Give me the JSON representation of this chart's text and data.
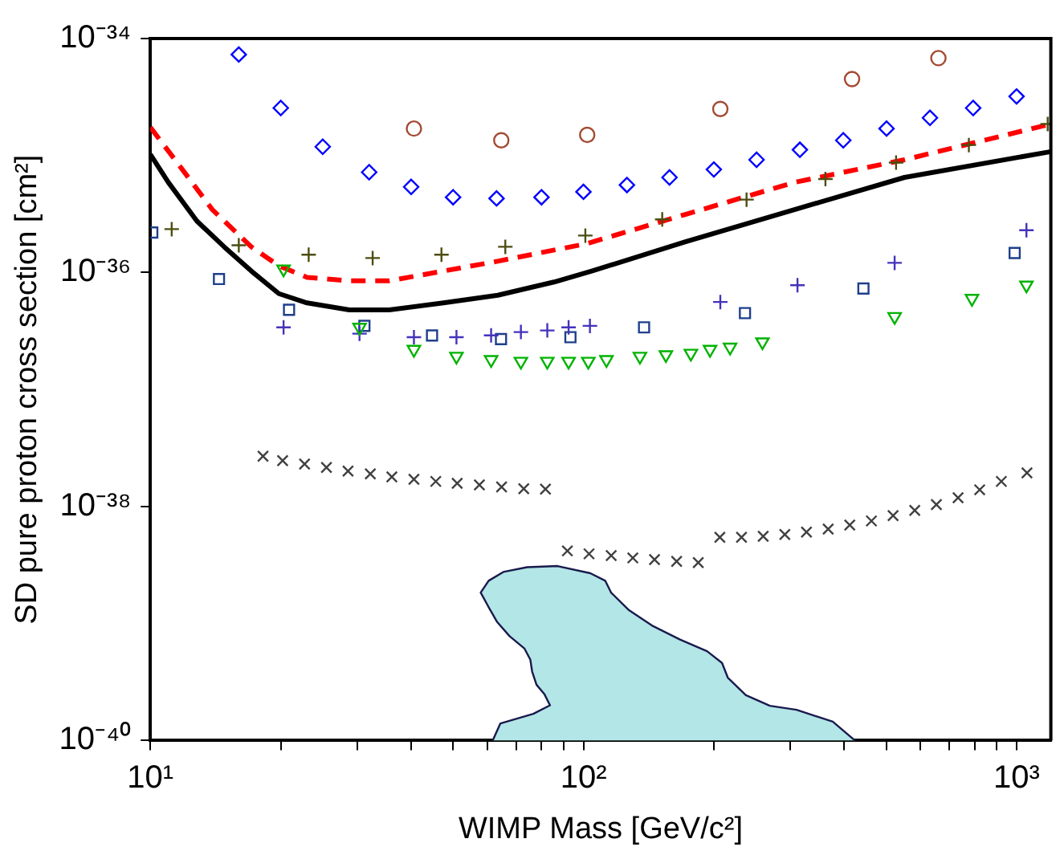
{
  "chart_data": {
    "type": "scatter",
    "xlabel": "WIMP Mass [GeV/c²]",
    "ylabel": "SD pure proton cross section [cm²]",
    "log": "xy",
    "grid": false,
    "legend": false,
    "xlim": [
      10,
      1200
    ],
    "ylim": [
      1e-40,
      1e-34
    ],
    "xticks": [
      {
        "value": 10,
        "label": "10¹"
      },
      {
        "value": 20,
        "label": null
      },
      {
        "value": 30,
        "label": null
      },
      {
        "value": 40,
        "label": null
      },
      {
        "value": 50,
        "label": null
      },
      {
        "value": 60,
        "label": null
      },
      {
        "value": 70,
        "label": null
      },
      {
        "value": 80,
        "label": null
      },
      {
        "value": 90,
        "label": null
      },
      {
        "value": 100,
        "label": "10²"
      },
      {
        "value": 200,
        "label": null
      },
      {
        "value": 300,
        "label": null
      },
      {
        "value": 400,
        "label": null
      },
      {
        "value": 500,
        "label": null
      },
      {
        "value": 600,
        "label": null
      },
      {
        "value": 700,
        "label": null
      },
      {
        "value": 800,
        "label": null
      },
      {
        "value": 900,
        "label": null
      },
      {
        "value": 1000,
        "label": "10³"
      }
    ],
    "yticks": [
      {
        "value": 1e-40,
        "label": "10⁻⁴⁰"
      },
      {
        "value": 1e-38,
        "label": "10⁻³⁸"
      },
      {
        "value": 1e-36,
        "label": "10⁻³⁶"
      },
      {
        "value": 1e-34,
        "label": "10⁻³⁴"
      }
    ],
    "series": [
      {
        "type": "area",
        "color": "#b3e6e6",
        "x": [
          61.7,
          64.3,
          76.6,
          83.7,
          81.2,
          77.9,
          76.1,
          75.4,
          73.1,
          67.5,
          63.2,
          60.4,
          57.9,
          60.4,
          65.3,
          74.1,
          87.1,
          103.7,
          112.3,
          115.8,
          127.4,
          144.8,
          167.1,
          192.9,
          208.9,
          215.4,
          237.1,
          269.4,
          310.5,
          376.4,
          423.6
        ],
        "values": [
          1e-40,
          1.4e-40,
          1.69e-40,
          2e-40,
          2.5e-40,
          3e-40,
          3.9e-40,
          4.9e-40,
          6.1e-40,
          7.8e-40,
          1.03e-39,
          1.38e-39,
          1.84e-39,
          2.32e-39,
          2.76e-39,
          3.03e-39,
          3.1e-39,
          2.69e-39,
          2.32e-39,
          1.84e-39,
          1.3e-39,
          9.5e-40,
          7.3e-40,
          5.8e-40,
          4.6e-40,
          3.45e-40,
          2.44e-40,
          1.98e-40,
          1.83e-40,
          1.45e-40,
          1e-40
        ]
      },
      {
        "type": "scatter",
        "marker": "circle",
        "color": "#a34a32",
        "x": [
          40.6,
          64.6,
          102,
          207,
          417,
          660
        ],
        "values": [
          1.7e-35,
          1.35e-35,
          1.5e-35,
          2.5e-35,
          4.5e-35,
          6.8e-35
        ]
      },
      {
        "type": "scatter",
        "marker": "diamond",
        "color": "#0000ff",
        "x": [
          16,
          20,
          25,
          32,
          40,
          50,
          63,
          80,
          100,
          126,
          158,
          200,
          251,
          316,
          398,
          501,
          631,
          794,
          1000
        ],
        "values": [
          7.3e-35,
          2.55e-35,
          1.19e-35,
          7.2e-36,
          5.4e-36,
          4.4e-36,
          4.3e-36,
          4.4e-36,
          4.9e-36,
          5.6e-36,
          6.5e-36,
          7.6e-36,
          9.2e-36,
          1.12e-35,
          1.35e-35,
          1.7e-35,
          2.1e-35,
          2.55e-35,
          3.2e-35
        ]
      },
      {
        "type": "scatter",
        "marker": "cross",
        "color": "#4d4d10",
        "x": [
          11.2,
          16,
          23.2,
          32.6,
          47,
          66,
          101,
          152,
          238,
          362,
          527,
          776,
          1180
        ],
        "values": [
          2.35e-36,
          1.71e-36,
          1.42e-36,
          1.33e-36,
          1.42e-36,
          1.66e-36,
          2.07e-36,
          2.85e-36,
          4.2e-36,
          6.3e-36,
          8.7e-36,
          1.23e-35,
          1.86e-35
        ]
      },
      {
        "type": "scatter",
        "marker": "square",
        "color": "#1f3f8c",
        "x": [
          10.1,
          14.4,
          20.9,
          31.2,
          44.7,
          64.5,
          93.3,
          138,
          236,
          443,
          990
        ],
        "values": [
          2.2e-36,
          8.8e-37,
          4.8e-37,
          3.5e-37,
          2.9e-37,
          2.7e-37,
          2.8e-37,
          3.4e-37,
          4.5e-37,
          7.3e-37,
          1.47e-36
        ]
      },
      {
        "type": "scatter",
        "marker": "cross",
        "color": "#4433bb",
        "x": [
          20.3,
          30.4,
          40.6,
          50.9,
          61.2,
          71.7,
          82.5,
          92.4,
          103.5,
          207,
          312,
          523,
          1054
        ],
        "values": [
          3.4e-37,
          3e-37,
          2.8e-37,
          2.8e-37,
          2.9e-37,
          3.1e-37,
          3.2e-37,
          3.4e-37,
          3.5e-37,
          5.6e-37,
          7.8e-37,
          1.21e-36,
          2.3e-36
        ]
      },
      {
        "type": "scatter",
        "marker": "triangle-down",
        "color": "#00b300",
        "x": [
          20.3,
          30.4,
          40.6,
          50.9,
          61.2,
          71.7,
          82.5,
          92.4,
          102.6,
          113,
          135,
          155,
          177,
          196,
          218,
          259,
          523,
          789,
          1054
        ],
        "values": [
          1.07e-36,
          3.4e-37,
          2.2e-37,
          1.92e-37,
          1.8e-37,
          1.74e-37,
          1.74e-37,
          1.74e-37,
          1.74e-37,
          1.8e-37,
          1.92e-37,
          1.98e-37,
          2.04e-37,
          2.2e-37,
          2.3e-37,
          2.55e-37,
          4.2e-37,
          6e-37,
          7.8e-37
        ]
      },
      {
        "type": "scatter",
        "marker": "x",
        "color": "#404040",
        "x": [
          18.2,
          20.2,
          22.7,
          25.5,
          28.6,
          32.2,
          36.1,
          40.6,
          45.6,
          51.1,
          57.5,
          64.7,
          72.8,
          81.7,
          91.8,
          103,
          115.9,
          130,
          145.9,
          164.1,
          184.1,
          206.5,
          231.7,
          260,
          291.7,
          327.3,
          367.3,
          412,
          462.3,
          518.7,
          582,
          653,
          732.8,
          822,
          922.3,
          1057
        ],
        "values": [
          2.69e-38,
          2.47e-38,
          2.31e-38,
          2.16e-38,
          2.01e-38,
          1.9e-38,
          1.79e-38,
          1.71e-38,
          1.64e-38,
          1.58e-38,
          1.53e-38,
          1.47e-38,
          1.42e-38,
          1.41e-38,
          4.18e-39,
          3.94e-39,
          3.81e-39,
          3.64e-39,
          3.52e-39,
          3.4e-39,
          3.32e-39,
          5.46e-39,
          5.46e-39,
          5.57e-39,
          5.77e-39,
          6.05e-39,
          6.41e-39,
          6.94e-39,
          7.53e-39,
          8.37e-39,
          9.27e-39,
          1.04e-38,
          1.19e-38,
          1.39e-38,
          1.64e-38,
          1.94e-38
        ]
      },
      {
        "type": "line",
        "line_style": "solid",
        "marker": "none",
        "color": "#000000",
        "x": [
          10,
          11,
          12.8,
          14.8,
          17.1,
          19.8,
          23,
          28.8,
          35.6,
          47.5,
          63.4,
          85.5,
          104.5,
          172,
          307,
          551,
          1200
        ],
        "values": [
          1.02e-35,
          5.9e-36,
          2.76e-36,
          1.66e-36,
          1.03e-36,
          6.6e-37,
          5.5e-37,
          4.8e-37,
          4.8e-37,
          5.5e-37,
          6.4e-37,
          8.3e-37,
          1.03e-36,
          1.83e-36,
          3.45e-36,
          6.5e-36,
          1.08e-35
        ]
      },
      {
        "type": "line",
        "line_style": "dashed",
        "marker": "none",
        "color": "#ff0000",
        "x": [
          10,
          11.7,
          13.9,
          17.1,
          19.8,
          23,
          28.8,
          35.6,
          47.5,
          63.4,
          102,
          172,
          307,
          551,
          1200
        ],
        "values": [
          1.74e-35,
          8.1e-36,
          3.45e-36,
          1.66e-36,
          1.14e-36,
          9.1e-37,
          8.5e-37,
          8.5e-37,
          1.03e-36,
          1.25e-36,
          1.77e-36,
          3.14e-36,
          5.9e-36,
          9.2e-36,
          1.86e-35
        ]
      }
    ]
  }
}
